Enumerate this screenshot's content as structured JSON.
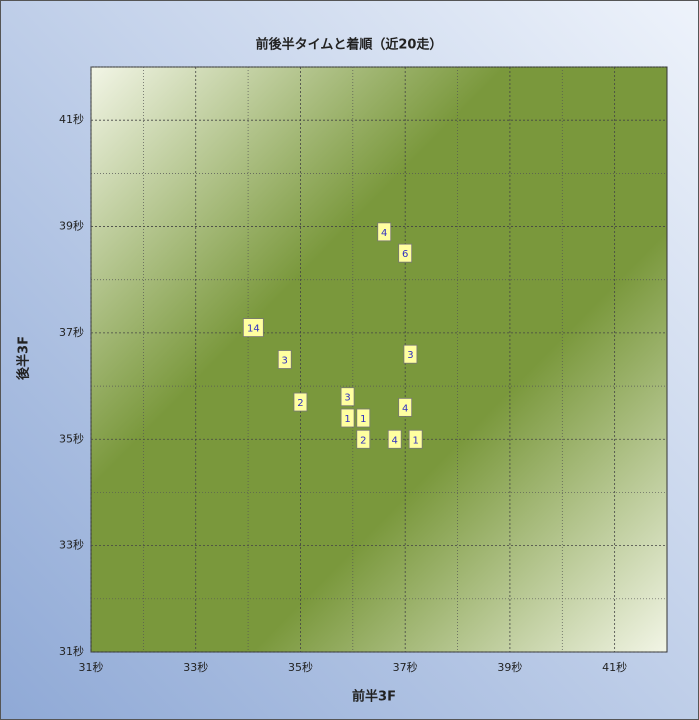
{
  "chart_data": {
    "type": "scatter",
    "title": "前後半タイムと着順（近20走）",
    "x_label": "前半3F",
    "y_label": "後半3F",
    "xlim": [
      31,
      42
    ],
    "ylim": [
      31,
      42
    ],
    "xticks": [
      {
        "value": 31,
        "label": "31秒"
      },
      {
        "value": 33,
        "label": "33秒"
      },
      {
        "value": 35,
        "label": "35秒"
      },
      {
        "value": 37,
        "label": "37秒"
      },
      {
        "value": 39,
        "label": "39秒"
      },
      {
        "value": 41,
        "label": "41秒"
      }
    ],
    "yticks": [
      {
        "value": 31,
        "label": "31秒"
      },
      {
        "value": 33,
        "label": "33秒"
      },
      {
        "value": 35,
        "label": "35秒"
      },
      {
        "value": 37,
        "label": "37秒"
      },
      {
        "value": 39,
        "label": "39秒"
      },
      {
        "value": 41,
        "label": "41秒"
      }
    ],
    "grid": true,
    "series": [
      {
        "color": "#ffffa0",
        "x": [
          36.6,
          37.0,
          34.1,
          34.7,
          37.1,
          35.0,
          35.9,
          35.9,
          36.2,
          37.0,
          36.2,
          36.8,
          37.2
        ],
        "values": [
          38.9,
          38.5,
          37.1,
          36.5,
          36.6,
          35.7,
          35.8,
          35.4,
          35.4,
          35.6,
          35.0,
          35.0,
          35.0
        ],
        "labels": [
          4,
          6,
          14,
          3,
          3,
          2,
          3,
          1,
          1,
          4,
          2,
          4,
          1
        ]
      }
    ]
  }
}
